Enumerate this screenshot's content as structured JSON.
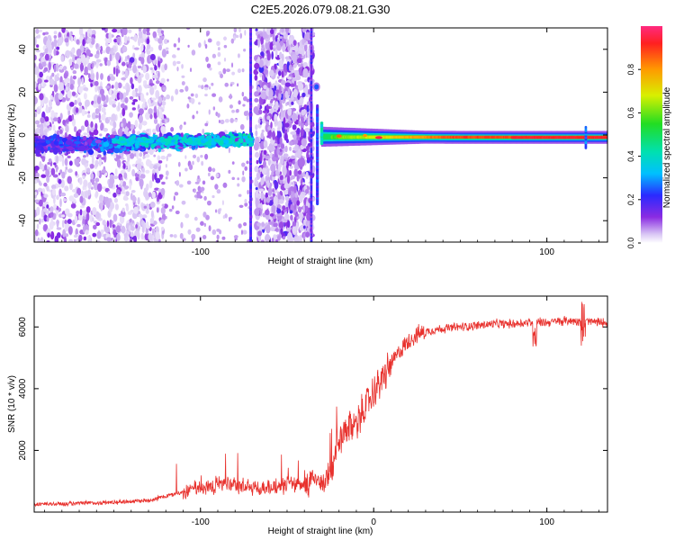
{
  "title": "C2E5.2026.079.08.21.G30",
  "chart_data": [
    {
      "type": "heatmap",
      "xlabel": "Height of straight line (km)",
      "ylabel": "Frequency (Hz)",
      "xlim": [
        -196,
        135
      ],
      "ylim": [
        -50,
        50
      ],
      "xticks": [
        -100,
        0,
        100
      ],
      "xtick_labels": [
        "-100",
        "",
        "100"
      ],
      "yticks": [
        -40,
        -20,
        0,
        20,
        40
      ],
      "ytick_labels": [
        "-40",
        "-20",
        "0",
        "20",
        "40"
      ],
      "colorbar": {
        "label": "Normalized spectral amplitude",
        "ticks": [
          0.0,
          0.2,
          0.4,
          0.6,
          0.8
        ],
        "tick_labels": [
          "0.0",
          "0.2",
          "0.4",
          "0.6",
          "0.8"
        ],
        "range": [
          0,
          1
        ],
        "colormap": "rainbow"
      },
      "features": [
        {
          "name": "noisy band",
          "x": [
            -196,
            -70
          ],
          "center_freq": -5,
          "amplitude": 0.3
        },
        {
          "name": "sharp carrier",
          "x": [
            -30,
            135
          ],
          "center_freq": -1,
          "amplitude": 0.95
        },
        {
          "name": "blip",
          "x": [
            -33
          ],
          "freq": 22,
          "amplitude": 0.25
        }
      ]
    },
    {
      "type": "line",
      "xlabel": "Height of straight line (km)",
      "ylabel": "SNR (10 * v/v)",
      "xlim": [
        -196,
        135
      ],
      "ylim": [
        0,
        7000
      ],
      "xticks": [
        -100,
        0,
        100
      ],
      "xtick_labels": [
        "-100",
        "0",
        "100"
      ],
      "yticks": [
        2000,
        4000,
        6000
      ],
      "ytick_labels": [
        "2000",
        "4000",
        "6000"
      ],
      "series": [
        {
          "name": "SNR",
          "color": "#e8312d",
          "x": [
            -196,
            -170,
            -150,
            -130,
            -110,
            -100,
            -90,
            -80,
            -70,
            -60,
            -50,
            -40,
            -30,
            -25,
            -20,
            -15,
            -10,
            -5,
            0,
            5,
            10,
            15,
            20,
            25,
            30,
            40,
            50,
            60,
            70,
            80,
            90,
            100,
            110,
            120,
            130,
            135
          ],
          "values": [
            250,
            280,
            320,
            380,
            650,
            800,
            900,
            850,
            800,
            750,
            900,
            950,
            1000,
            1200,
            2200,
            2700,
            2900,
            3400,
            3900,
            4300,
            4800,
            5200,
            5550,
            5750,
            5850,
            5950,
            6000,
            6050,
            6100,
            6100,
            6150,
            6150,
            6200,
            6200,
            6150,
            6150
          ]
        }
      ]
    }
  ]
}
